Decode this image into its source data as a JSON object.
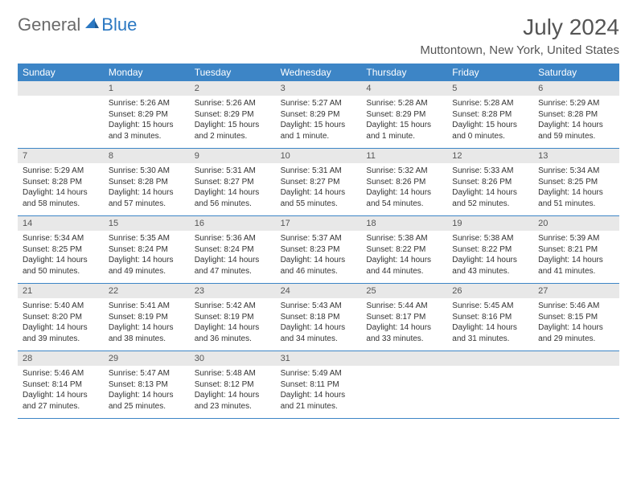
{
  "logo": {
    "general": "General",
    "blue": "Blue"
  },
  "title": "July 2024",
  "location": "Muttontown, New York, United States",
  "colors": {
    "header_bg": "#3d85c6",
    "header_text": "#ffffff",
    "daynum_bg": "#e8e8e8",
    "text": "#333333",
    "rule": "#3d85c6"
  },
  "dayNames": [
    "Sunday",
    "Monday",
    "Tuesday",
    "Wednesday",
    "Thursday",
    "Friday",
    "Saturday"
  ],
  "weeks": [
    {
      "nums": [
        "",
        "1",
        "2",
        "3",
        "4",
        "5",
        "6"
      ],
      "cells": [
        {},
        {
          "sunrise": "Sunrise: 5:26 AM",
          "sunset": "Sunset: 8:29 PM",
          "d1": "Daylight: 15 hours",
          "d2": "and 3 minutes."
        },
        {
          "sunrise": "Sunrise: 5:26 AM",
          "sunset": "Sunset: 8:29 PM",
          "d1": "Daylight: 15 hours",
          "d2": "and 2 minutes."
        },
        {
          "sunrise": "Sunrise: 5:27 AM",
          "sunset": "Sunset: 8:29 PM",
          "d1": "Daylight: 15 hours",
          "d2": "and 1 minute."
        },
        {
          "sunrise": "Sunrise: 5:28 AM",
          "sunset": "Sunset: 8:29 PM",
          "d1": "Daylight: 15 hours",
          "d2": "and 1 minute."
        },
        {
          "sunrise": "Sunrise: 5:28 AM",
          "sunset": "Sunset: 8:28 PM",
          "d1": "Daylight: 15 hours",
          "d2": "and 0 minutes."
        },
        {
          "sunrise": "Sunrise: 5:29 AM",
          "sunset": "Sunset: 8:28 PM",
          "d1": "Daylight: 14 hours",
          "d2": "and 59 minutes."
        }
      ]
    },
    {
      "nums": [
        "7",
        "8",
        "9",
        "10",
        "11",
        "12",
        "13"
      ],
      "cells": [
        {
          "sunrise": "Sunrise: 5:29 AM",
          "sunset": "Sunset: 8:28 PM",
          "d1": "Daylight: 14 hours",
          "d2": "and 58 minutes."
        },
        {
          "sunrise": "Sunrise: 5:30 AM",
          "sunset": "Sunset: 8:28 PM",
          "d1": "Daylight: 14 hours",
          "d2": "and 57 minutes."
        },
        {
          "sunrise": "Sunrise: 5:31 AM",
          "sunset": "Sunset: 8:27 PM",
          "d1": "Daylight: 14 hours",
          "d2": "and 56 minutes."
        },
        {
          "sunrise": "Sunrise: 5:31 AM",
          "sunset": "Sunset: 8:27 PM",
          "d1": "Daylight: 14 hours",
          "d2": "and 55 minutes."
        },
        {
          "sunrise": "Sunrise: 5:32 AM",
          "sunset": "Sunset: 8:26 PM",
          "d1": "Daylight: 14 hours",
          "d2": "and 54 minutes."
        },
        {
          "sunrise": "Sunrise: 5:33 AM",
          "sunset": "Sunset: 8:26 PM",
          "d1": "Daylight: 14 hours",
          "d2": "and 52 minutes."
        },
        {
          "sunrise": "Sunrise: 5:34 AM",
          "sunset": "Sunset: 8:25 PM",
          "d1": "Daylight: 14 hours",
          "d2": "and 51 minutes."
        }
      ]
    },
    {
      "nums": [
        "14",
        "15",
        "16",
        "17",
        "18",
        "19",
        "20"
      ],
      "cells": [
        {
          "sunrise": "Sunrise: 5:34 AM",
          "sunset": "Sunset: 8:25 PM",
          "d1": "Daylight: 14 hours",
          "d2": "and 50 minutes."
        },
        {
          "sunrise": "Sunrise: 5:35 AM",
          "sunset": "Sunset: 8:24 PM",
          "d1": "Daylight: 14 hours",
          "d2": "and 49 minutes."
        },
        {
          "sunrise": "Sunrise: 5:36 AM",
          "sunset": "Sunset: 8:24 PM",
          "d1": "Daylight: 14 hours",
          "d2": "and 47 minutes."
        },
        {
          "sunrise": "Sunrise: 5:37 AM",
          "sunset": "Sunset: 8:23 PM",
          "d1": "Daylight: 14 hours",
          "d2": "and 46 minutes."
        },
        {
          "sunrise": "Sunrise: 5:38 AM",
          "sunset": "Sunset: 8:22 PM",
          "d1": "Daylight: 14 hours",
          "d2": "and 44 minutes."
        },
        {
          "sunrise": "Sunrise: 5:38 AM",
          "sunset": "Sunset: 8:22 PM",
          "d1": "Daylight: 14 hours",
          "d2": "and 43 minutes."
        },
        {
          "sunrise": "Sunrise: 5:39 AM",
          "sunset": "Sunset: 8:21 PM",
          "d1": "Daylight: 14 hours",
          "d2": "and 41 minutes."
        }
      ]
    },
    {
      "nums": [
        "21",
        "22",
        "23",
        "24",
        "25",
        "26",
        "27"
      ],
      "cells": [
        {
          "sunrise": "Sunrise: 5:40 AM",
          "sunset": "Sunset: 8:20 PM",
          "d1": "Daylight: 14 hours",
          "d2": "and 39 minutes."
        },
        {
          "sunrise": "Sunrise: 5:41 AM",
          "sunset": "Sunset: 8:19 PM",
          "d1": "Daylight: 14 hours",
          "d2": "and 38 minutes."
        },
        {
          "sunrise": "Sunrise: 5:42 AM",
          "sunset": "Sunset: 8:19 PM",
          "d1": "Daylight: 14 hours",
          "d2": "and 36 minutes."
        },
        {
          "sunrise": "Sunrise: 5:43 AM",
          "sunset": "Sunset: 8:18 PM",
          "d1": "Daylight: 14 hours",
          "d2": "and 34 minutes."
        },
        {
          "sunrise": "Sunrise: 5:44 AM",
          "sunset": "Sunset: 8:17 PM",
          "d1": "Daylight: 14 hours",
          "d2": "and 33 minutes."
        },
        {
          "sunrise": "Sunrise: 5:45 AM",
          "sunset": "Sunset: 8:16 PM",
          "d1": "Daylight: 14 hours",
          "d2": "and 31 minutes."
        },
        {
          "sunrise": "Sunrise: 5:46 AM",
          "sunset": "Sunset: 8:15 PM",
          "d1": "Daylight: 14 hours",
          "d2": "and 29 minutes."
        }
      ]
    },
    {
      "nums": [
        "28",
        "29",
        "30",
        "31",
        "",
        "",
        ""
      ],
      "cells": [
        {
          "sunrise": "Sunrise: 5:46 AM",
          "sunset": "Sunset: 8:14 PM",
          "d1": "Daylight: 14 hours",
          "d2": "and 27 minutes."
        },
        {
          "sunrise": "Sunrise: 5:47 AM",
          "sunset": "Sunset: 8:13 PM",
          "d1": "Daylight: 14 hours",
          "d2": "and 25 minutes."
        },
        {
          "sunrise": "Sunrise: 5:48 AM",
          "sunset": "Sunset: 8:12 PM",
          "d1": "Daylight: 14 hours",
          "d2": "and 23 minutes."
        },
        {
          "sunrise": "Sunrise: 5:49 AM",
          "sunset": "Sunset: 8:11 PM",
          "d1": "Daylight: 14 hours",
          "d2": "and 21 minutes."
        },
        {},
        {},
        {}
      ]
    }
  ]
}
